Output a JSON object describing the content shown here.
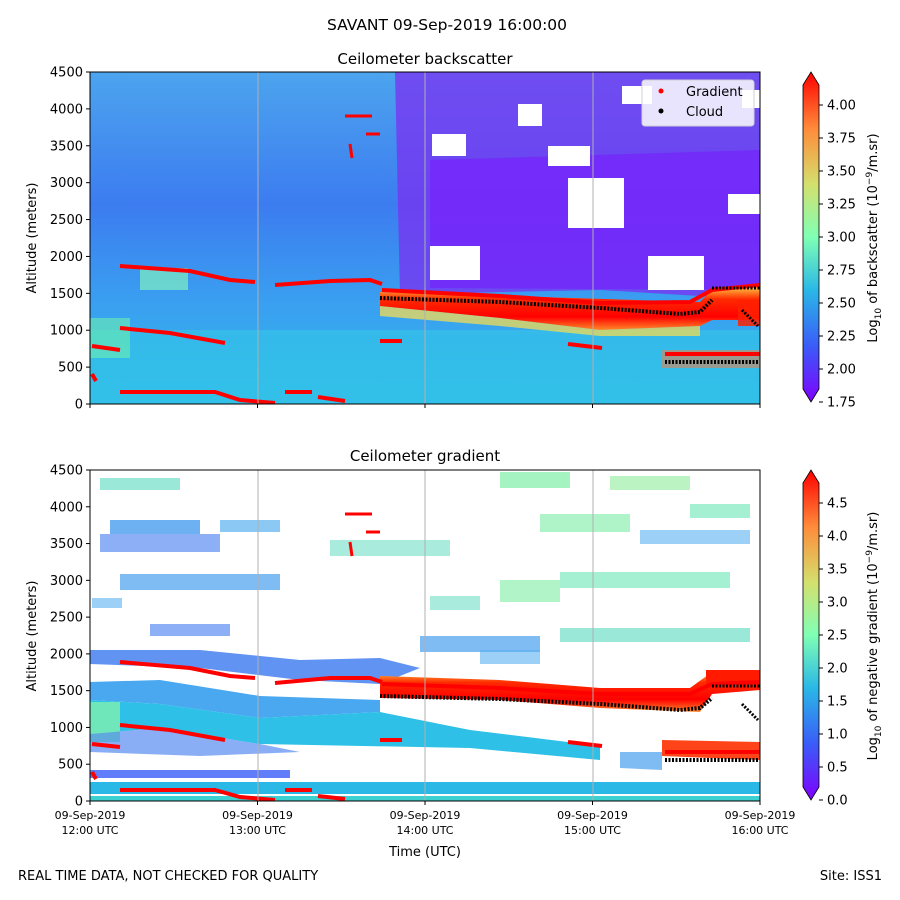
{
  "suptitle": "SAVANT 09-Sep-2019 16:00:00",
  "footer": {
    "left": "REAL TIME DATA, NOT CHECKED FOR QUALITY",
    "right": "Site: ISS1"
  },
  "chart_data": [
    {
      "type": "heatmap",
      "title": "Ceilometer backscatter",
      "ylabel": "Altitude (meters)",
      "xlabel": "",
      "ylim": [
        0,
        4500
      ],
      "yticks": [
        "0",
        "500",
        "1000",
        "1500",
        "2000",
        "2500",
        "3000",
        "3500",
        "4000",
        "4500"
      ],
      "xticks": [],
      "colorbar": {
        "label": "Log10 of backscatter (10^-9/m.sr)",
        "label_main": "Log",
        "label_sub": "10",
        "label_rest": " of backscatter (10",
        "label_sup": "−9",
        "label_end": "/m.sr)",
        "range": [
          1.75,
          4.25
        ],
        "ticks": [
          "1.75",
          "2.00",
          "2.25",
          "2.50",
          "2.75",
          "3.00",
          "3.25",
          "3.50",
          "3.75",
          "4.00"
        ]
      },
      "legend": {
        "placement": "top-right",
        "entries": [
          {
            "label": "Gradient",
            "color": "#ff0000"
          },
          {
            "label": "Cloud",
            "color": "#000000"
          }
        ]
      },
      "series": [
        {
          "name": "Gradient",
          "points": [
            [
              12.0,
              780
            ],
            [
              12.08,
              770
            ],
            [
              12.5,
              160
            ],
            [
              12.9,
              90
            ],
            [
              13.0,
              60
            ],
            [
              13.33,
              1700
            ],
            [
              13.75,
              1530
            ],
            [
              14.0,
              1520
            ],
            [
              14.5,
              1470
            ],
            [
              15.0,
              1350
            ],
            [
              15.5,
              1400
            ],
            [
              15.8,
              1600
            ]
          ]
        },
        {
          "name": "Cloud",
          "points": [
            [
              13.75,
              1420
            ],
            [
              14.0,
              1420
            ],
            [
              14.5,
              1380
            ],
            [
              15.0,
              1290
            ],
            [
              15.5,
              1250
            ],
            [
              15.67,
              640
            ],
            [
              15.75,
              560
            ],
            [
              16.0,
              580
            ]
          ]
        }
      ]
    },
    {
      "type": "heatmap",
      "title": "Ceilometer gradient",
      "ylabel": "Altitude (meters)",
      "xlabel": "Time (UTC)",
      "ylim": [
        0,
        4500
      ],
      "yticks": [
        "0",
        "500",
        "1000",
        "1500",
        "2000",
        "2500",
        "3000",
        "3500",
        "4000",
        "4500"
      ],
      "xticks": [
        {
          "line1": "09-Sep-2019",
          "line2": "12:00 UTC"
        },
        {
          "line1": "09-Sep-2019",
          "line2": "13:00 UTC"
        },
        {
          "line1": "09-Sep-2019",
          "line2": "14:00 UTC"
        },
        {
          "line1": "09-Sep-2019",
          "line2": "15:00 UTC"
        },
        {
          "line1": "09-Sep-2019",
          "line2": "16:00 UTC"
        }
      ],
      "colorbar": {
        "label": "Log10 of negative gradient (10^-9/m.sr)",
        "label_main": "Log",
        "label_sub": "10",
        "label_rest": " of negative gradient (10",
        "label_sup": "−9",
        "label_end": "/m.sr)",
        "range": [
          0.0,
          5.0
        ],
        "ticks": [
          "0.0",
          "0.5",
          "1.0",
          "1.5",
          "2.0",
          "2.5",
          "3.0",
          "3.5",
          "4.0",
          "4.5"
        ]
      }
    }
  ]
}
